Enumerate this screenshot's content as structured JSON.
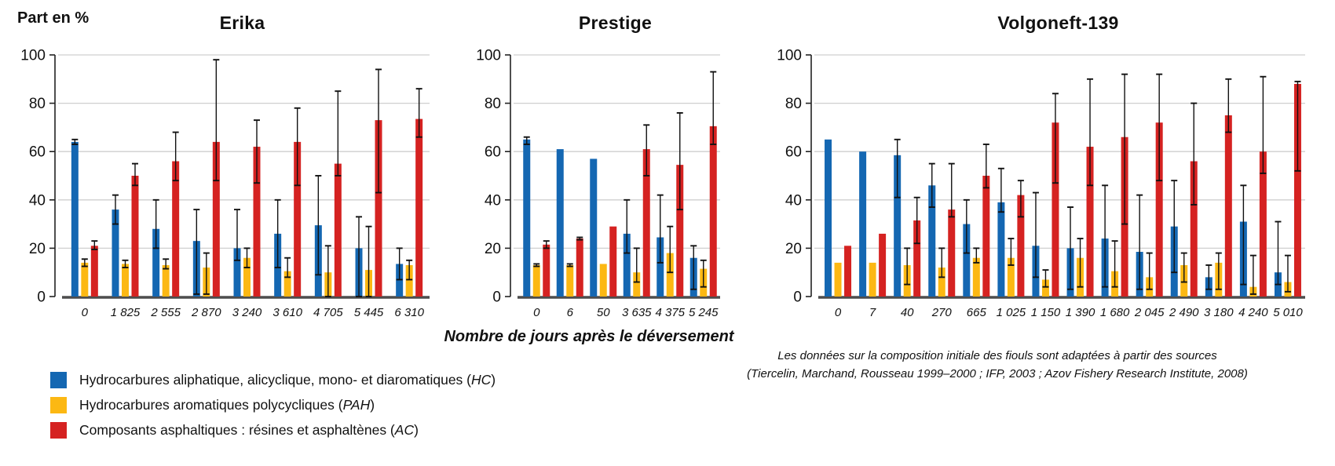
{
  "page": {
    "ylabel": "Part en %",
    "xlabel": "Nombre de jours après le déversement",
    "source_note_line1": "Les données sur la composition initiale des fiouls sont adaptées à partir des sources",
    "source_note_line2": "(Tiercelin, Marchand, Rousseau 1999–2000 ; IFP, 2003 ; Azov Fishery Research Institute, 2008)"
  },
  "colors": {
    "hc_blue": "#1467b2",
    "pah_yellow": "#fcb813",
    "ac_red": "#d52221",
    "gridline": "#cfcfcf",
    "baseline": "#4d4d4d"
  },
  "legend": {
    "items": [
      {
        "series": "HC",
        "color": "#1467b2",
        "label_prefix": "Hydrocarbures aliphatique, alicyclique, mono- et diaromatiques (",
        "label_abbr": "HC",
        "label_suffix": ")"
      },
      {
        "series": "PAH",
        "color": "#fcb813",
        "label_prefix": "Hydrocarbures aromatiques polycycliques (",
        "label_abbr": "PAH",
        "label_suffix": ")"
      },
      {
        "series": "AC",
        "color": "#d52221",
        "label_prefix": "Composants asphaltiques : résines et asphaltènes (",
        "label_abbr": "AC",
        "label_suffix": ")"
      }
    ]
  },
  "chart_data": [
    {
      "type": "bar",
      "title": "Erika",
      "xlabel": "Nombre de jours après le déversement",
      "ylabel": "Part en %",
      "ylim": [
        0,
        100
      ],
      "yticks": [
        0,
        20,
        40,
        60,
        80,
        100
      ],
      "grid": true,
      "categories": [
        "0",
        "1 825",
        "2 555",
        "2 870",
        "3 240",
        "3 610",
        "4 705",
        "5 445",
        "6 310"
      ],
      "series": [
        {
          "name": "HC",
          "color": "#1467b2",
          "values": [
            64,
            36,
            28,
            23,
            20,
            26,
            29.5,
            20,
            13.5
          ],
          "errors": [
            [
              63,
              65
            ],
            [
              30,
              42
            ],
            [
              20,
              40
            ],
            [
              1,
              36
            ],
            [
              15,
              36
            ],
            [
              12,
              40
            ],
            [
              9,
              50
            ],
            [
              0,
              33
            ],
            [
              7,
              20
            ]
          ]
        },
        {
          "name": "PAH",
          "color": "#fcb813",
          "values": [
            14,
            13.5,
            13,
            12,
            16,
            10.5,
            10,
            11,
            13
          ],
          "errors": [
            [
              12.5,
              15.5
            ],
            [
              12,
              15
            ],
            [
              11.5,
              15.5
            ],
            [
              1,
              18
            ],
            [
              12,
              20
            ],
            [
              8,
              16
            ],
            [
              0,
              21
            ],
            [
              0,
              29
            ],
            [
              7,
              15
            ]
          ]
        },
        {
          "name": "AC",
          "color": "#d52221",
          "values": [
            21,
            50,
            56,
            64,
            62,
            64,
            55,
            73,
            73.5
          ],
          "errors": [
            [
              19.5,
              23
            ],
            [
              46,
              55
            ],
            [
              48,
              68
            ],
            [
              48,
              98
            ],
            [
              47,
              73
            ],
            [
              46,
              78
            ],
            [
              50,
              85
            ],
            [
              43,
              94
            ],
            [
              66,
              86
            ]
          ]
        }
      ]
    },
    {
      "type": "bar",
      "title": "Prestige",
      "xlabel": "Nombre de jours après le déversement",
      "ylabel": "Part en %",
      "ylim": [
        0,
        100
      ],
      "yticks": [
        0,
        20,
        40,
        60,
        80,
        100
      ],
      "grid": true,
      "categories": [
        "0",
        "6",
        "50",
        "3 635",
        "4 375",
        "5 245"
      ],
      "series": [
        {
          "name": "HC",
          "color": "#1467b2",
          "values": [
            65,
            61,
            57,
            26,
            24.5,
            16
          ],
          "errors": [
            [
              63,
              66
            ],
            null,
            null,
            [
              18,
              40
            ],
            [
              14,
              42
            ],
            [
              3,
              21
            ]
          ]
        },
        {
          "name": "PAH",
          "color": "#fcb813",
          "values": [
            13,
            13,
            13.5,
            10,
            18,
            11.5
          ],
          "errors": [
            [
              12.5,
              13.5
            ],
            [
              12.5,
              13.5
            ],
            null,
            [
              6,
              20
            ],
            [
              10,
              29
            ],
            [
              4,
              15
            ]
          ]
        },
        {
          "name": "AC",
          "color": "#d52221",
          "values": [
            21.5,
            24,
            29,
            61,
            54.5,
            70.5
          ],
          "errors": [
            [
              20,
              23
            ],
            [
              23.5,
              24.5
            ],
            null,
            [
              50,
              71
            ],
            [
              36,
              76
            ],
            [
              63,
              93
            ]
          ]
        }
      ]
    },
    {
      "type": "bar",
      "title": "Volgoneft-139",
      "xlabel": "Nombre de jours après le déversement",
      "ylabel": "Part en %",
      "ylim": [
        0,
        100
      ],
      "yticks": [
        0,
        20,
        40,
        60,
        80,
        100
      ],
      "grid": true,
      "categories": [
        "0",
        "7",
        "40",
        "270",
        "665",
        "1 025",
        "1 150",
        "1 390",
        "1 680",
        "2 045",
        "2 490",
        "3 180",
        "4 240",
        "5 010"
      ],
      "series": [
        {
          "name": "HC",
          "color": "#1467b2",
          "values": [
            65,
            60,
            58.5,
            46,
            30,
            39,
            21,
            20,
            24,
            18.5,
            29,
            8,
            31,
            10
          ],
          "errors": [
            null,
            null,
            [
              41,
              65
            ],
            [
              37,
              55
            ],
            [
              18,
              40
            ],
            [
              35,
              53
            ],
            [
              8,
              43
            ],
            [
              3,
              37
            ],
            [
              4,
              46
            ],
            [
              3,
              42
            ],
            [
              10,
              48
            ],
            [
              3,
              13
            ],
            [
              5,
              46
            ],
            [
              5,
              31
            ]
          ]
        },
        {
          "name": "PAH",
          "color": "#fcb813",
          "values": [
            14,
            14,
            13,
            12,
            16,
            16,
            7,
            16,
            10.5,
            8,
            13,
            14,
            4,
            6
          ],
          "errors": [
            null,
            null,
            [
              5,
              20
            ],
            [
              8,
              20
            ],
            [
              14,
              20
            ],
            [
              13,
              24
            ],
            [
              4,
              11
            ],
            [
              4,
              24
            ],
            [
              4,
              23
            ],
            [
              3,
              18
            ],
            [
              6,
              18
            ],
            [
              3,
              18
            ],
            [
              1,
              17
            ],
            [
              2,
              17
            ]
          ]
        },
        {
          "name": "AC",
          "color": "#d52221",
          "values": [
            21,
            26,
            31.5,
            36,
            50,
            42,
            72,
            62,
            66,
            72,
            56,
            75,
            60,
            88
          ],
          "errors": [
            null,
            null,
            [
              22,
              41
            ],
            [
              33,
              55
            ],
            [
              45,
              63
            ],
            [
              33,
              48
            ],
            [
              47,
              84
            ],
            [
              46,
              90
            ],
            [
              30,
              92
            ],
            [
              48,
              92
            ],
            [
              38,
              80
            ],
            [
              68,
              90
            ],
            [
              51,
              91
            ],
            [
              52,
              89
            ]
          ]
        }
      ]
    }
  ]
}
